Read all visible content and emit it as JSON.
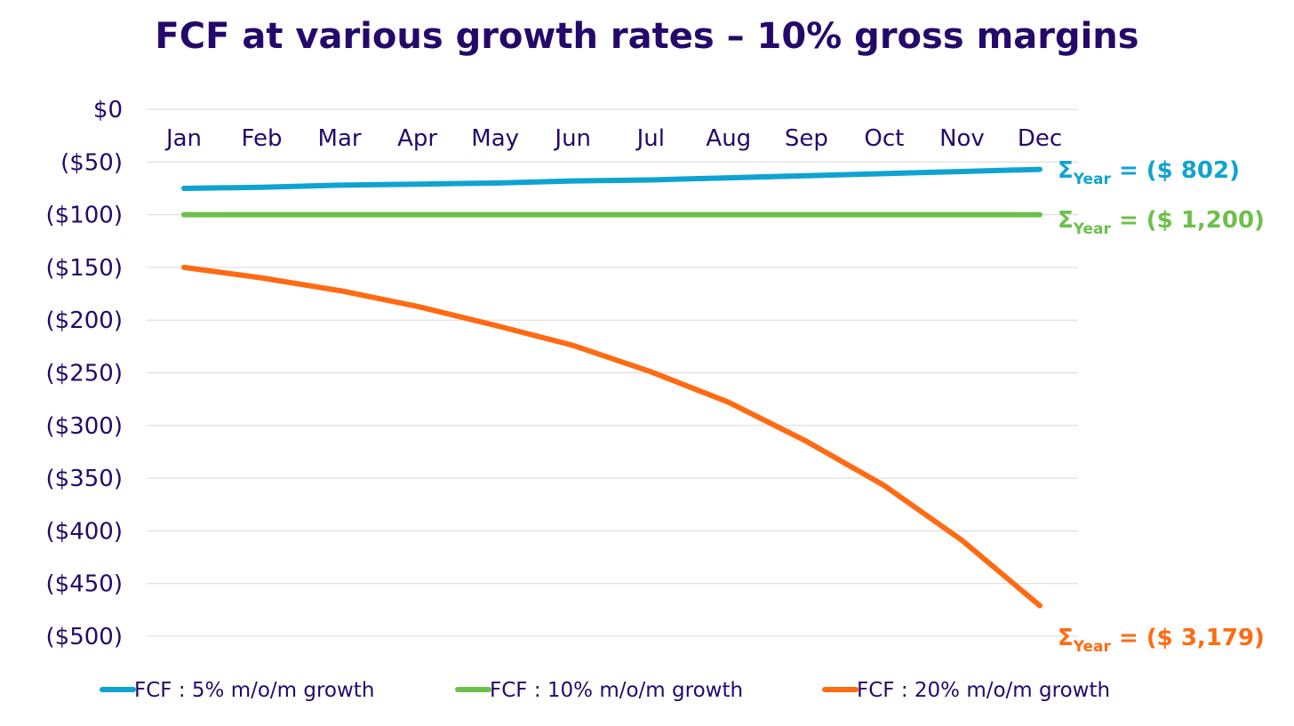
{
  "chart_data": {
    "type": "line",
    "title": "FCF at various growth rates – 10% gross margins",
    "xlabel": "",
    "ylabel": "",
    "categories": [
      "Jan",
      "Feb",
      "Mar",
      "Apr",
      "May",
      "Jun",
      "Jul",
      "Aug",
      "Sep",
      "Oct",
      "Nov",
      "Dec"
    ],
    "ylim": [
      -500,
      0
    ],
    "yticks": [
      0,
      -50,
      -100,
      -150,
      -200,
      -250,
      -300,
      -350,
      -400,
      -450,
      -500
    ],
    "ytick_labels": [
      "$0",
      "($50)",
      "($100)",
      "($150)",
      "($200)",
      "($250)",
      "($300)",
      "($350)",
      "($400)",
      "($450)",
      "($500)"
    ],
    "grid": true,
    "legend_position": "bottom",
    "series": [
      {
        "name": "FCF : 5% m/o/m growth",
        "color": "#0fa3d1",
        "values": [
          -75,
          -74,
          -72,
          -71,
          -70,
          -68,
          -67,
          -65,
          -63,
          -61,
          -59,
          -57
        ],
        "annotation": {
          "symbol": "Σ",
          "sub": "Year",
          "text": "= ($ 802)"
        }
      },
      {
        "name": "FCF : 10% m/o/m growth",
        "color": "#6cc04a",
        "values": [
          -100,
          -100,
          -100,
          -100,
          -100,
          -100,
          -100,
          -100,
          -100,
          -100,
          -100,
          -100
        ],
        "annotation": {
          "symbol": "Σ",
          "sub": "Year",
          "text": "= ($ 1,200)"
        }
      },
      {
        "name": "FCF : 20% m/o/m growth",
        "color": "#ff6a13",
        "values": [
          -150,
          -160,
          -172,
          -187,
          -205,
          -224,
          -249,
          -278,
          -315,
          -357,
          -409,
          -471
        ],
        "annotation": {
          "symbol": "Σ",
          "sub": "Year",
          "text": "= ($ 3,179)"
        }
      }
    ]
  }
}
